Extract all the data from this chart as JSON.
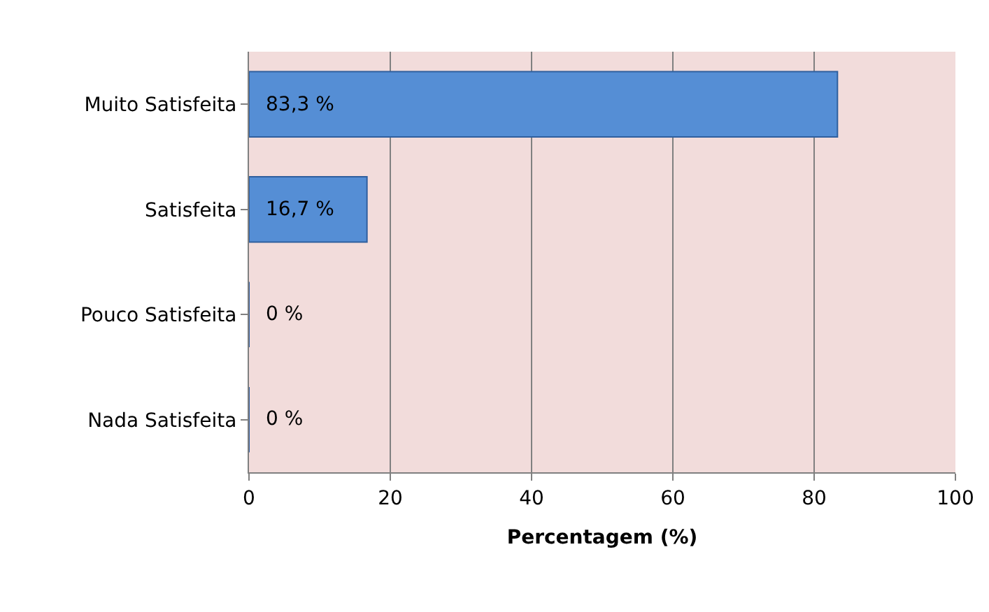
{
  "chart_data": {
    "type": "bar",
    "orientation": "horizontal",
    "xlabel": "Percentagem (%)",
    "categories": [
      "Muito Satisfeita",
      "Satisfeita",
      "Pouco Satisfeita",
      "Nada Satisfeita"
    ],
    "values": [
      83.3,
      16.7,
      0,
      0
    ],
    "value_labels": [
      "83,3 %",
      "16,7 %",
      "0 %",
      "0 %"
    ],
    "color": "#558ed5",
    "xlim": [
      0,
      100
    ],
    "xticks": [
      0,
      20,
      40,
      60,
      80,
      100
    ],
    "grid": "x",
    "legend": false
  }
}
